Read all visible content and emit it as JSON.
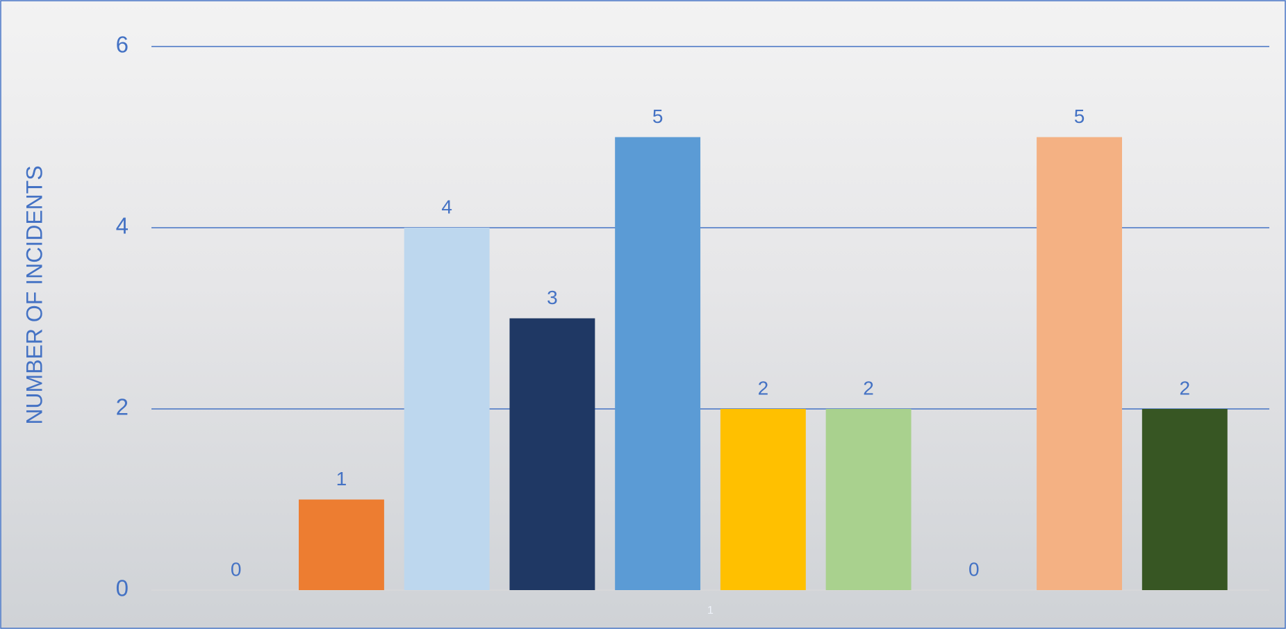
{
  "chart_data": {
    "type": "bar",
    "y_label": "NUMBER OF INCIDENTS",
    "categories": [
      "1"
    ],
    "series": [
      {
        "color": "#4472c4",
        "values": [
          0
        ]
      },
      {
        "color": "#ed7d31",
        "values": [
          1
        ]
      },
      {
        "color": "#bdd7ee",
        "values": [
          4
        ]
      },
      {
        "color": "#1f3864",
        "values": [
          3
        ]
      },
      {
        "color": "#5b9bd5",
        "values": [
          5
        ]
      },
      {
        "color": "#ffc000",
        "values": [
          2
        ]
      },
      {
        "color": "#a9d18e",
        "values": [
          2
        ]
      },
      {
        "color": "#7f7f7f",
        "values": [
          0
        ]
      },
      {
        "color": "#f4b183",
        "values": [
          5
        ]
      },
      {
        "color": "#375623",
        "values": [
          2
        ]
      }
    ],
    "ylim": [
      0,
      6
    ],
    "yticks": [
      0,
      2,
      4,
      6
    ],
    "grid": true
  }
}
